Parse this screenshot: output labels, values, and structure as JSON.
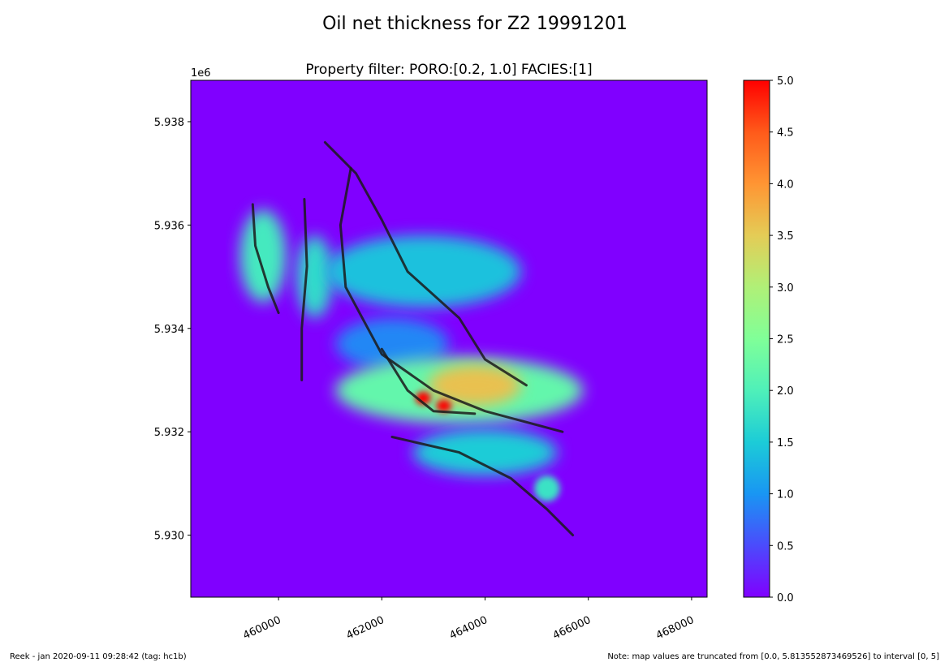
{
  "title": "Oil net thickness for Z2 19991201",
  "subtitle": "Property filter:   PORO:[0.2, 1.0]  FACIES:[1]",
  "footer": {
    "left": "Reek -  jan 2020-09-11 09:28:42 (tag: hc1b)",
    "right": "Note: map values are truncated from [0.0, 5.813552873469526] to interval [0, 5]"
  },
  "chart_data": {
    "type": "heatmap",
    "title": "Oil net thickness for Z2 19991201",
    "subtitle": "Property filter:   PORO:[0.2, 1.0]  FACIES:[1]",
    "xlabel": "",
    "ylabel": "",
    "xlim": [
      458300,
      468300
    ],
    "ylim": [
      5928800,
      5938800
    ],
    "y_offset_label": "1e6",
    "x_ticks": [
      460000,
      462000,
      464000,
      466000,
      468000
    ],
    "x_tick_labels": [
      "460000",
      "462000",
      "464000",
      "466000",
      "468000"
    ],
    "y_ticks": [
      5930000,
      5932000,
      5934000,
      5936000,
      5938000
    ],
    "y_tick_labels": [
      "5.930",
      "5.932",
      "5.934",
      "5.936",
      "5.938"
    ],
    "grid": false,
    "background_value": 0.0,
    "colorbar": {
      "colormap": "rainbow",
      "range": [
        0,
        5
      ],
      "ticks": [
        "0.0",
        "0.5",
        "1.0",
        "1.5",
        "2.0",
        "2.5",
        "3.0",
        "3.5",
        "4.0",
        "4.5",
        "5.0"
      ],
      "colors": [
        "#8000ff",
        "#4b4bfc",
        "#1996f3",
        "#1cccd7",
        "#4ff0b9",
        "#80ff98",
        "#b0f077",
        "#e4cc56",
        "#ff9533",
        "#ff5a1a",
        "#ff0000"
      ]
    },
    "thickness_regions": [
      {
        "x": 459700,
        "y": 5935400,
        "rx": 450,
        "ry": 900,
        "value": 1.9
      },
      {
        "x": 460700,
        "y": 5935000,
        "rx": 350,
        "ry": 800,
        "value": 1.7
      },
      {
        "x": 462800,
        "y": 5935100,
        "rx": 1900,
        "ry": 700,
        "value": 1.4
      },
      {
        "x": 462200,
        "y": 5933700,
        "rx": 1100,
        "ry": 500,
        "value": 0.9
      },
      {
        "x": 463500,
        "y": 5932800,
        "rx": 2400,
        "ry": 650,
        "value": 2.2
      },
      {
        "x": 463800,
        "y": 5932900,
        "rx": 900,
        "ry": 400,
        "value": 3.6
      },
      {
        "x": 462800,
        "y": 5932650,
        "rx": 150,
        "ry": 130,
        "value": 5.0
      },
      {
        "x": 463200,
        "y": 5932500,
        "rx": 150,
        "ry": 120,
        "value": 5.0
      },
      {
        "x": 464000,
        "y": 5931600,
        "rx": 1400,
        "ry": 450,
        "value": 1.5
      },
      {
        "x": 465200,
        "y": 5930900,
        "rx": 250,
        "ry": 250,
        "value": 1.8
      }
    ],
    "faults": [
      {
        "points": [
          [
            459500,
            5936400
          ],
          [
            459550,
            5935600
          ],
          [
            459800,
            5934800
          ],
          [
            460000,
            5934300
          ]
        ]
      },
      {
        "points": [
          [
            460500,
            5936500
          ],
          [
            460550,
            5935200
          ],
          [
            460450,
            5934000
          ],
          [
            460450,
            5933000
          ]
        ]
      },
      {
        "points": [
          [
            460900,
            5937600
          ],
          [
            461500,
            5937000
          ],
          [
            462000,
            5936100
          ],
          [
            462500,
            5935100
          ],
          [
            463500,
            5934200
          ],
          [
            464000,
            5933400
          ],
          [
            464800,
            5932900
          ]
        ]
      },
      {
        "points": [
          [
            461400,
            5937100
          ],
          [
            461200,
            5936000
          ],
          [
            461300,
            5934800
          ],
          [
            462000,
            5933500
          ],
          [
            463000,
            5932800
          ],
          [
            464000,
            5932400
          ],
          [
            465500,
            5932000
          ]
        ]
      },
      {
        "points": [
          [
            462000,
            5933600
          ],
          [
            462500,
            5932800
          ],
          [
            463000,
            5932400
          ],
          [
            463800,
            5932350
          ]
        ]
      },
      {
        "points": [
          [
            462200,
            5931900
          ],
          [
            463500,
            5931600
          ],
          [
            464500,
            5931100
          ],
          [
            465200,
            5930500
          ],
          [
            465700,
            5930000
          ]
        ]
      }
    ]
  }
}
